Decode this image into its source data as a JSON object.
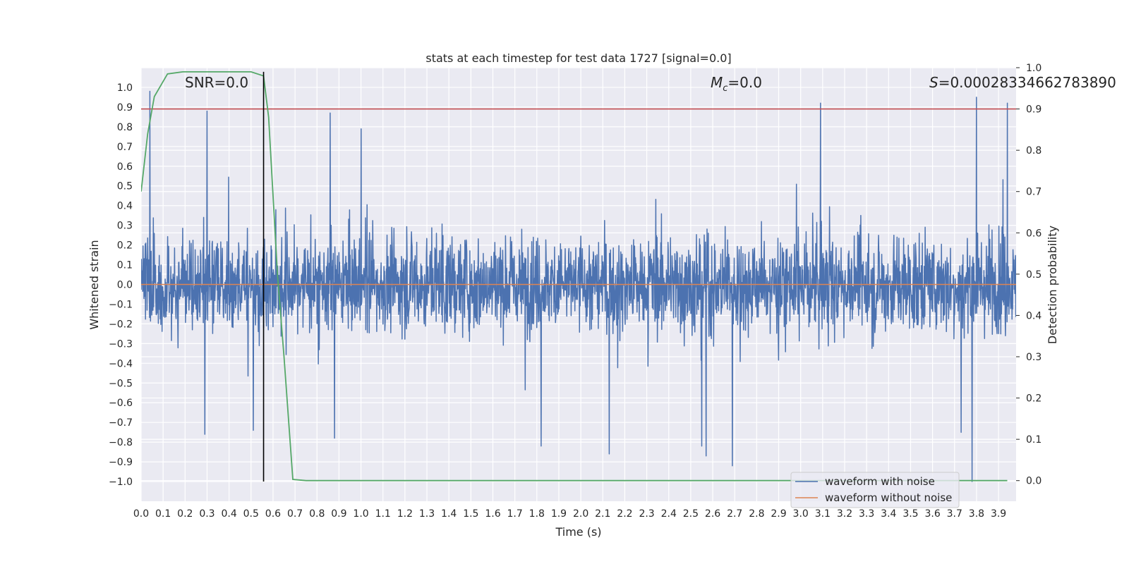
{
  "chart_data": {
    "type": "line",
    "title": "stats at each timestep for test data 1727 [signal=0.0]",
    "xlabel": "Time (s)",
    "ylabel": "Whitened strain",
    "ylabel_right": "Detection probability",
    "xlim": [
      0.0,
      3.98
    ],
    "ylim": [
      -1.1,
      1.1
    ],
    "ylim_right": [
      -0.05,
      1.0
    ],
    "x_ticks": [
      "0.0",
      "0.1",
      "0.2",
      "0.3",
      "0.4",
      "0.5",
      "0.6",
      "0.7",
      "0.8",
      "0.9",
      "1.0",
      "1.1",
      "1.2",
      "1.3",
      "1.4",
      "1.5",
      "1.6",
      "1.7",
      "1.8",
      "1.9",
      "2.0",
      "2.1",
      "2.2",
      "2.3",
      "2.4",
      "2.5",
      "2.6",
      "2.7",
      "2.8",
      "2.9",
      "3.0",
      "3.1",
      "3.2",
      "3.3",
      "3.4",
      "3.5",
      "3.6",
      "3.7",
      "3.8",
      "3.9"
    ],
    "y_ticks": [
      "1.0",
      "0.9",
      "0.8",
      "0.7",
      "0.6",
      "0.5",
      "0.4",
      "0.3",
      "0.2",
      "0.1",
      "0.0",
      "−0.1",
      "−0.2",
      "−0.3",
      "−0.4",
      "−0.5",
      "−0.6",
      "−0.7",
      "−0.8",
      "−0.9",
      "−1.0"
    ],
    "y_ticks_right": [
      "1.0",
      "0.9",
      "0.8",
      "0.7",
      "0.6",
      "0.5",
      "0.4",
      "0.3",
      "0.2",
      "0.1",
      "0.0"
    ],
    "annotations": {
      "snr": "SNR=0.0",
      "mc_symbol": "M",
      "mc_sub": "c",
      "mc_value": "=0.0",
      "s_symbol": "S",
      "s_value": "=0.00028334662783890"
    },
    "threshold_right": 0.9,
    "peak_time": 0.557,
    "series": [
      {
        "name": "waveform with noise",
        "axis": "left",
        "color": "#4c72b0",
        "description": "dense whitened noise between about -0.95 and 0.99",
        "spikes": [
          [
            0.04,
            0.98
          ],
          [
            0.3,
            0.88
          ],
          [
            0.86,
            0.87
          ],
          [
            1.0,
            0.79
          ],
          [
            3.09,
            0.92
          ],
          [
            3.8,
            0.95
          ],
          [
            3.94,
            0.92
          ],
          [
            0.29,
            -0.76
          ],
          [
            0.51,
            -0.74
          ],
          [
            0.88,
            -0.78
          ],
          [
            1.82,
            -0.82
          ],
          [
            2.13,
            -0.86
          ],
          [
            2.55,
            -0.82
          ],
          [
            2.57,
            -0.87
          ],
          [
            2.69,
            -0.92
          ],
          [
            3.78,
            -1.0
          ],
          [
            3.73,
            -0.75
          ]
        ]
      },
      {
        "name": "waveform without noise",
        "axis": "left",
        "color": "#dd8452",
        "description": "flat at 0.0"
      },
      {
        "name": "detection probability",
        "axis": "right",
        "color": "#55a868",
        "x": [
          0.0,
          0.03,
          0.06,
          0.12,
          0.19,
          0.25,
          0.31,
          0.37,
          0.43,
          0.5,
          0.557,
          0.58,
          0.62,
          0.65,
          0.69,
          0.75,
          0.81,
          0.87,
          3.94
        ],
        "y": [
          0.7,
          0.84,
          0.93,
          0.985,
          0.99,
          0.99,
          0.99,
          0.99,
          0.99,
          0.99,
          0.98,
          0.88,
          0.5,
          0.3,
          0.003,
          0.0,
          0.0,
          0.0,
          0.0
        ]
      }
    ],
    "legend": {
      "placement": "lower-right",
      "entries": [
        "waveform with noise",
        "waveform without noise"
      ]
    }
  },
  "colors": {
    "background": "#eaeaf2",
    "grid": "#ffffff",
    "noise": "#4c72b0",
    "clean": "#dd8452",
    "probability": "#55a868",
    "threshold": "#c44e52",
    "marker": "#000000"
  }
}
